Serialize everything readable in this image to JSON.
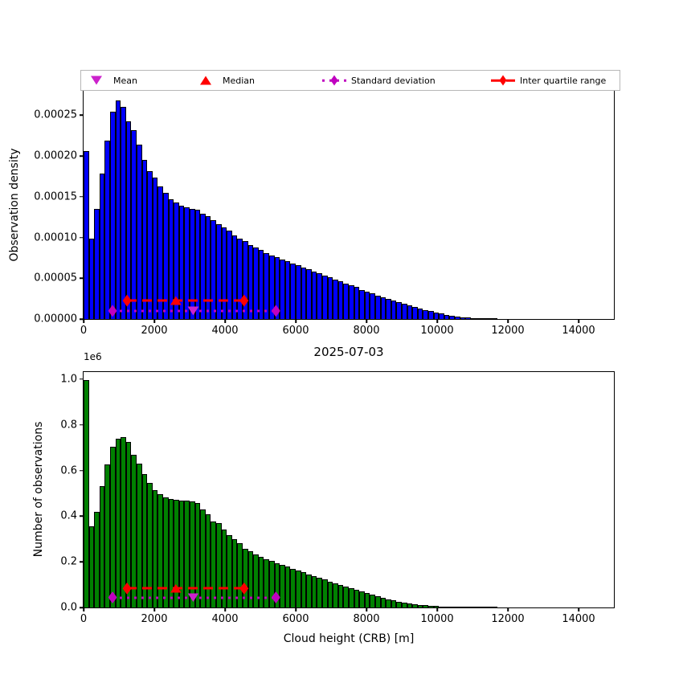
{
  "figure": {
    "background": "#ffffff"
  },
  "legend": {
    "items": [
      {
        "label": "Mean",
        "marker": "triangle-down",
        "color": "#CC22CC",
        "line": "none"
      },
      {
        "label": "Median",
        "marker": "triangle-up",
        "color": "#FF0000",
        "line": "none"
      },
      {
        "label": "Standard deviation",
        "marker": "diamond",
        "color": "#C000C0",
        "line": "dotted"
      },
      {
        "label": "Inter quartile range",
        "marker": "diamond",
        "color": "#FF0000",
        "line": "dashed"
      }
    ]
  },
  "chart_data": [
    {
      "type": "bar",
      "subtype": "histogram",
      "title": "",
      "xlabel": "",
      "ylabel": "Observation density",
      "bar_color": "#0000FF",
      "bar_edge_color": "#000000",
      "bin_width_m": 150,
      "x_start": 0,
      "xlim": [
        0,
        15000
      ],
      "ylim": [
        0,
        0.00028
      ],
      "grid": false,
      "xtick_values": [
        0,
        2000,
        4000,
        6000,
        8000,
        10000,
        12000,
        14000
      ],
      "xtick_labels": [
        "0",
        "2000",
        "4000",
        "6000",
        "8000",
        "10000",
        "12000",
        "14000"
      ],
      "ytick_values": [
        0,
        5e-05,
        0.0001,
        0.00015,
        0.0002,
        0.00025
      ],
      "ytick_labels": [
        "0.00000",
        "0.00005",
        "0.00010",
        "0.00015",
        "0.00020",
        "0.00025"
      ],
      "values": [
        0.000206,
        9.9e-05,
        0.000135,
        0.000178,
        0.000219,
        0.000254,
        0.000268,
        0.00026,
        0.000243,
        0.000232,
        0.000214,
        0.000195,
        0.000181,
        0.000174,
        0.000163,
        0.000155,
        0.000147,
        0.000143,
        0.000139,
        0.000137,
        0.000135,
        0.000134,
        0.000129,
        0.000126,
        0.000121,
        0.000116,
        0.000112,
        0.000108,
        0.000103,
        9.9e-05,
        9.6e-05,
        9.1e-05,
        8.8e-05,
        8.5e-05,
        8.1e-05,
        7.8e-05,
        7.6e-05,
        7.3e-05,
        7.1e-05,
        6.8e-05,
        6.6e-05,
        6.3e-05,
        6.1e-05,
        5.8e-05,
        5.6e-05,
        5.3e-05,
        5.1e-05,
        4.8e-05,
        4.6e-05,
        4.3e-05,
        4.1e-05,
        3.9e-05,
        3.6e-05,
        3.4e-05,
        3.2e-05,
        2.9e-05,
        2.7e-05,
        2.5e-05,
        2.3e-05,
        2.1e-05,
        1.9e-05,
        1.7e-05,
        1.5e-05,
        1.3e-05,
        1.1e-05,
        9.5e-06,
        8e-06,
        6.5e-06,
        5e-06,
        4e-06,
        3e-06,
        2.2e-06,
        1.6e-06,
        1.1e-06,
        7e-07,
        4e-07,
        2e-07,
        1e-07
      ],
      "stats": {
        "mean_m": 3100,
        "median_m": 2610,
        "std_range_m": [
          820,
          5440
        ],
        "iqr_m": [
          1230,
          4540
        ],
        "iqr_line_y": 2.25e-05,
        "std_line_y": 1e-05,
        "mean_color": "#CC22CC",
        "median_color": "#FF0000",
        "std_color": "#C000C0",
        "iqr_color": "#FF0000"
      }
    },
    {
      "type": "bar",
      "subtype": "histogram",
      "title": "2025-07-03",
      "xlabel": "Cloud height (CRB) [m]",
      "ylabel": "Number of observations",
      "y_offset_label": "1e6",
      "bar_color": "#008000",
      "bar_edge_color": "#000000",
      "bin_width_m": 150,
      "x_start": 0,
      "xlim": [
        0,
        15000
      ],
      "ylim": [
        0,
        1031500
      ],
      "grid": false,
      "xtick_values": [
        0,
        2000,
        4000,
        6000,
        8000,
        10000,
        12000,
        14000
      ],
      "xtick_labels": [
        "0",
        "2000",
        "4000",
        "6000",
        "8000",
        "10000",
        "12000",
        "14000"
      ],
      "ytick_values": [
        0,
        200000,
        400000,
        600000,
        800000,
        1000000
      ],
      "ytick_labels": [
        "0.0",
        "0.2",
        "0.4",
        "0.6",
        "0.8",
        "1.0"
      ],
      "values": [
        995000,
        355000,
        420000,
        530000,
        625000,
        705000,
        740000,
        748000,
        724000,
        670000,
        630000,
        585000,
        545000,
        515000,
        497000,
        484000,
        476000,
        472000,
        470000,
        468000,
        465000,
        458000,
        430000,
        407000,
        377000,
        368000,
        342000,
        316000,
        300000,
        281000,
        258000,
        246000,
        232000,
        222000,
        212000,
        203000,
        194000,
        186000,
        178000,
        170000,
        162000,
        154000,
        146000,
        138000,
        130000,
        122000,
        114000,
        106000,
        99000,
        92000,
        85000,
        78000,
        71000,
        65000,
        58000,
        50000,
        43000,
        37000,
        31000,
        26000,
        22000,
        18000,
        15000,
        12000,
        10000,
        8000,
        6500,
        5000,
        4000,
        3000,
        2500,
        2000,
        1500,
        1000,
        800,
        500,
        300,
        200
      ],
      "stats": {
        "mean_m": 3100,
        "median_m": 2610,
        "std_range_m": [
          820,
          5440
        ],
        "iqr_m": [
          1230,
          4540
        ],
        "iqr_line_y": 83000,
        "std_line_y": 44000,
        "mean_color": "#CC22CC",
        "median_color": "#FF0000",
        "std_color": "#C000C0",
        "iqr_color": "#FF0000"
      }
    }
  ]
}
